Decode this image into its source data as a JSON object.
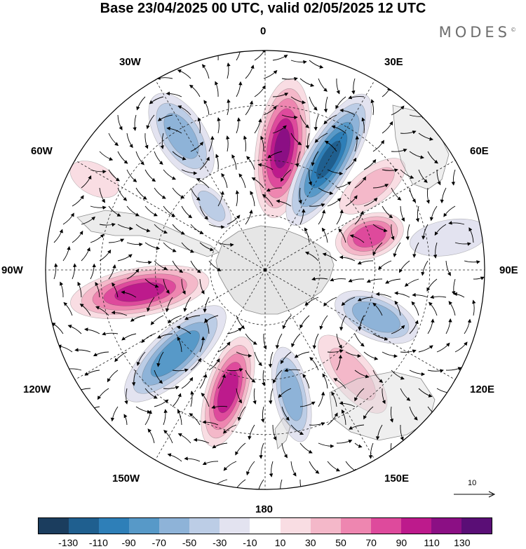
{
  "title": "Base 23/04/2025 00 UTC, valid 02/05/2025 12 UTC",
  "brand": "MODES",
  "brand_mark": "©",
  "longitude_labels": {
    "n0": "0",
    "n30e": "30E",
    "n60e": "60E",
    "n90e": "90E",
    "n120e": "120E",
    "n150e": "150E",
    "n180": "180",
    "n150w": "150W",
    "n120w": "120W",
    "n90w": "90W",
    "n60w": "60W",
    "n30w": "30W"
  },
  "reference_vector": "10",
  "colorbar": {
    "colors": [
      "#1b3d5e",
      "#1f5f8f",
      "#2e7fb8",
      "#5799c8",
      "#8eb3d8",
      "#bccde6",
      "#e3e3f0",
      "#ffffff",
      "#f9dde3",
      "#f4b8c9",
      "#ee86b0",
      "#de4a9c",
      "#bd1a8c",
      "#8b0f84",
      "#5a0e76"
    ],
    "ticks": [
      "-130",
      "-110",
      "-90",
      "-70",
      "-50",
      "-30",
      "-10",
      "10",
      "30",
      "50",
      "70",
      "90",
      "110",
      "130"
    ]
  },
  "map_data": {
    "anomalies": [
      {
        "lon": 8,
        "dist": 0.56,
        "value": 120,
        "rx": 0.32,
        "ry": 0.12
      },
      {
        "lon": 30,
        "dist": 0.58,
        "value": -120,
        "rx": 0.34,
        "ry": 0.11
      },
      {
        "lon": 52,
        "dist": 0.62,
        "value": 40,
        "rx": 0.18,
        "ry": 0.08
      },
      {
        "lon": 72,
        "dist": 0.5,
        "value": 95,
        "rx": 0.16,
        "ry": 0.1
      },
      {
        "lon": 80,
        "dist": 0.85,
        "value": -30,
        "rx": 0.18,
        "ry": 0.08
      },
      {
        "lon": 113,
        "dist": 0.55,
        "value": -75,
        "rx": 0.2,
        "ry": 0.1
      },
      {
        "lon": 140,
        "dist": 0.62,
        "value": 40,
        "rx": 0.22,
        "ry": 0.09
      },
      {
        "lon": 168,
        "dist": 0.58,
        "value": -70,
        "rx": 0.22,
        "ry": 0.08
      },
      {
        "lon": -163,
        "dist": 0.58,
        "value": 110,
        "rx": 0.26,
        "ry": 0.1
      },
      {
        "lon": -133,
        "dist": 0.56,
        "value": -95,
        "rx": 0.3,
        "ry": 0.11
      },
      {
        "lon": -100,
        "dist": 0.58,
        "value": 105,
        "rx": 0.32,
        "ry": 0.11
      },
      {
        "lon": -32,
        "dist": 0.72,
        "value": -65,
        "rx": 0.22,
        "ry": 0.11
      },
      {
        "lon": -40,
        "dist": 0.38,
        "value": -45,
        "rx": 0.12,
        "ry": 0.06
      },
      {
        "lon": -62,
        "dist": 0.88,
        "value": 20,
        "rx": 0.12,
        "ry": 0.07
      }
    ]
  }
}
